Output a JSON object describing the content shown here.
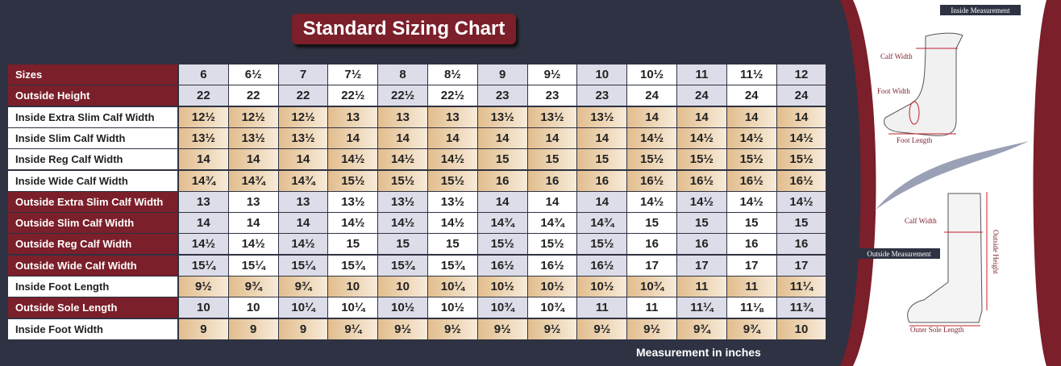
{
  "header": {
    "title": "Standard Sizing Chart"
  },
  "table": {
    "rows": [
      [
        "Sizes",
        "6",
        "6½",
        "7",
        "7½",
        "8",
        "8½",
        "9",
        "9½",
        "10",
        "10½",
        "11",
        "11½",
        "12"
      ],
      [
        "Outside Height",
        "22",
        "22",
        "22",
        "22½",
        "22½",
        "22½",
        "23",
        "23",
        "23",
        "24",
        "24",
        "24",
        "24"
      ],
      [
        "Inside Extra Slim Calf Width",
        "12½",
        "12½",
        "12½",
        "13",
        "13",
        "13",
        "13½",
        "13½",
        "13½",
        "14",
        "14",
        "14",
        "14"
      ],
      [
        "Inside Slim Calf Width",
        "13½",
        "13½",
        "13½",
        "14",
        "14",
        "14",
        "14",
        "14",
        "14",
        "14½",
        "14½",
        "14½",
        "14½"
      ],
      [
        "Inside Reg Calf Width",
        "14",
        "14",
        "14",
        "14½",
        "14½",
        "14½",
        "15",
        "15",
        "15",
        "15½",
        "15½",
        "15½",
        "15½"
      ],
      [
        "Inside Wide Calf Width",
        "14¾",
        "14¾",
        "14¾",
        "15½",
        "15½",
        "15½",
        "16",
        "16",
        "16",
        "16½",
        "16½",
        "16½",
        "16½"
      ],
      [
        "Outside Extra Slim Calf Width",
        "13",
        "13",
        "13",
        "13½",
        "13½",
        "13½",
        "14",
        "14",
        "14",
        "14½",
        "14½",
        "14½",
        "14½"
      ],
      [
        "Outside Slim Calf Width",
        "14",
        "14",
        "14",
        "14½",
        "14½",
        "14½",
        "14¾",
        "14¾",
        "14¾",
        "15",
        "15",
        "15",
        "15"
      ],
      [
        "Outside Reg Calf Width",
        "14½",
        "14½",
        "14½",
        "15",
        "15",
        "15",
        "15½",
        "15½",
        "15½",
        "16",
        "16",
        "16",
        "16"
      ],
      [
        "Outside Wide Calf Width",
        "15¼",
        "15¼",
        "15¼",
        "15¾",
        "15¾",
        "15¾",
        "16½",
        "16½",
        "16½",
        "17",
        "17",
        "17",
        "17"
      ],
      [
        "Inside Foot Length",
        "9½",
        "9¾",
        "9¾",
        "10",
        "10",
        "10¼",
        "10½",
        "10½",
        "10½",
        "10¾",
        "11",
        "11",
        "11¼"
      ],
      [
        "Outside Sole Length",
        "10",
        "10",
        "10¼",
        "10¼",
        "10½",
        "10½",
        "10¾",
        "10¾",
        "11",
        "11",
        "11¼",
        "11⅛",
        "11¾"
      ],
      [
        "Inside Foot Width",
        "9",
        "9",
        "9",
        "9¼",
        "9½",
        "9½",
        "9½",
        "9½",
        "9½",
        "9½",
        "9¾",
        "9¾",
        "10"
      ]
    ]
  },
  "footnote": "Measurement in inches",
  "diagram": {
    "inside_title": "Inside Measurement",
    "inside_labels": [
      "Calf Width",
      "Foot Width",
      "Foot Length"
    ],
    "outside_title": "Outside Measurement",
    "outside_labels": [
      "Calf Width",
      "Outside Height",
      "Outer Sole Length"
    ]
  }
}
